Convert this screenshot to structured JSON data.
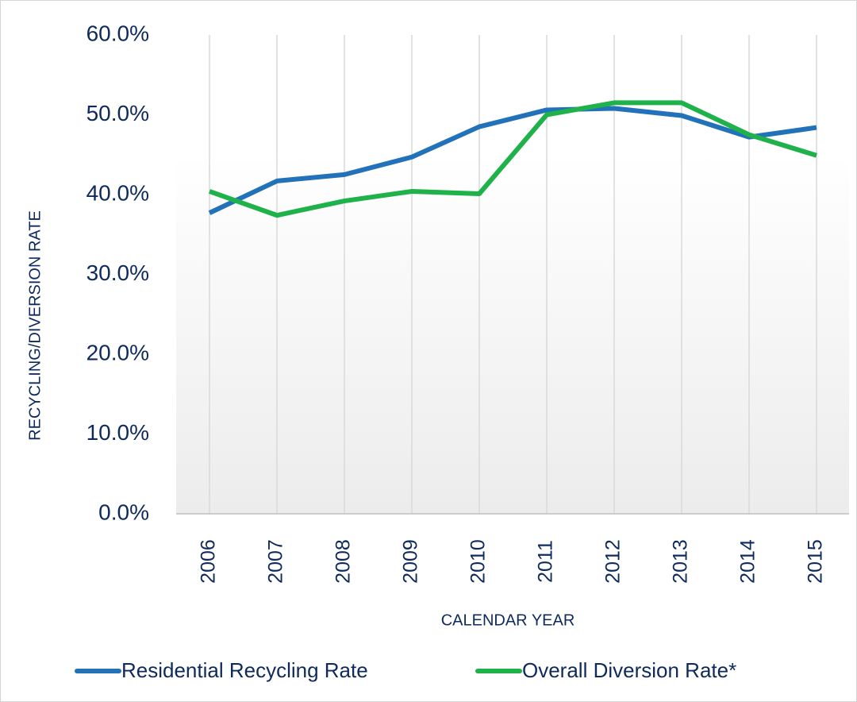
{
  "chart_data": {
    "type": "line",
    "y_axis_label": "RECYCLING/DIVERSION RATE",
    "x_axis_label": "CALENDAR YEAR",
    "categories": [
      "2006",
      "2007",
      "2008",
      "2009",
      "2010",
      "2011",
      "2012",
      "2013",
      "2014",
      "2015"
    ],
    "series": [
      {
        "name": "Residential Recycling Rate",
        "color": "#2272b9",
        "values": [
          37.7,
          41.7,
          42.5,
          44.7,
          48.5,
          50.6,
          50.8,
          49.9,
          47.2,
          48.4
        ]
      },
      {
        "name": "Overall Diversion Rate*",
        "color": "#1fb24a",
        "values": [
          40.4,
          37.4,
          39.2,
          40.4,
          40.1,
          50.0,
          51.5,
          51.5,
          47.5,
          44.9
        ]
      }
    ],
    "ylim": [
      0,
      60
    ],
    "yticks": [
      {
        "value": 0,
        "label": "0.0%"
      },
      {
        "value": 10,
        "label": "10.0%"
      },
      {
        "value": 20,
        "label": "20.0%"
      },
      {
        "value": 30,
        "label": "30.0%"
      },
      {
        "value": 40,
        "label": "40.0%"
      },
      {
        "value": 50,
        "label": "50.0%"
      },
      {
        "value": 60,
        "label": "60.0%"
      }
    ],
    "xgrid": true,
    "legend": "bottom"
  }
}
